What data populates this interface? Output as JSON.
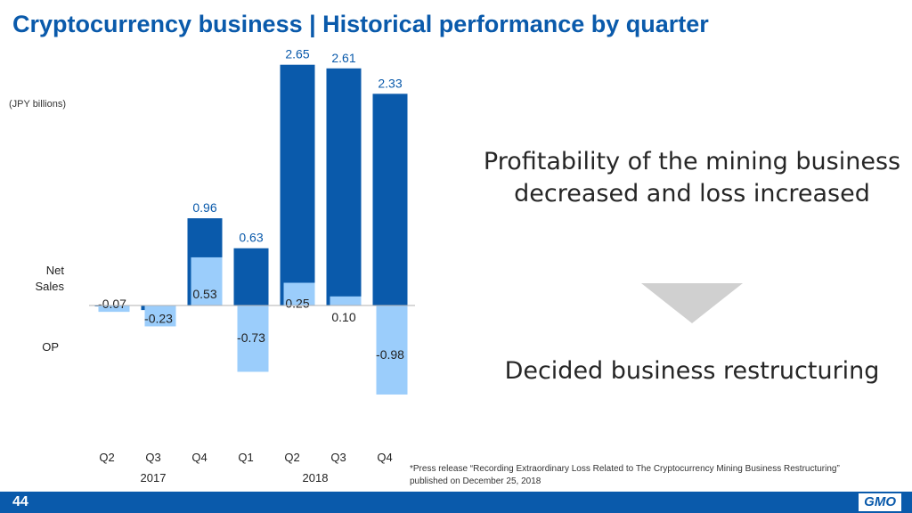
{
  "header": {
    "title": "Cryptocurrency business | Historical performance by quarter"
  },
  "chart_data": {
    "type": "bar",
    "unit_label": "(JPY billions)",
    "categories": [
      "Q2",
      "Q3",
      "Q4",
      "Q1",
      "Q2",
      "Q3",
      "Q4"
    ],
    "years": [
      {
        "label": "2017",
        "from": 0,
        "to": 2
      },
      {
        "label": "2018",
        "from": 3,
        "to": 6
      }
    ],
    "series": [
      {
        "name": "Net Sales",
        "values": [
          0,
          0,
          0.96,
          0.63,
          2.65,
          2.61,
          2.33
        ],
        "labels": [
          "",
          "",
          "0.96",
          "0.63",
          "2.65",
          "2.61",
          "2.33"
        ],
        "color": "#0a5aab"
      },
      {
        "name": "OP",
        "values": [
          -0.07,
          -0.23,
          0.53,
          -0.73,
          0.25,
          0.1,
          -0.98
        ],
        "labels": [
          "-0.07",
          "-0.23",
          "0.53",
          "-0.73",
          "0.25",
          "0.10",
          "-0.98"
        ],
        "color": "#9bcdfb"
      }
    ],
    "net_sales_small_negatives": [
      -0.01,
      -0.05
    ],
    "series_labels": {
      "net_sales": "Net\nSales",
      "op": "OP"
    }
  },
  "message": {
    "line1": "Profitability of the mining business decreased and loss increased",
    "line2": "Decided business restructuring"
  },
  "footnote": {
    "line1": "*Press release “Recording Extraordinary Loss Related to The Cryptocurrency Mining Business Restructuring”",
    "line2": "published on December 25, 2018"
  },
  "footer": {
    "page": "44",
    "logo": "GMO"
  },
  "colors": {
    "brand": "#0a5aab",
    "light": "#9bcdfb",
    "text": "#262626"
  }
}
